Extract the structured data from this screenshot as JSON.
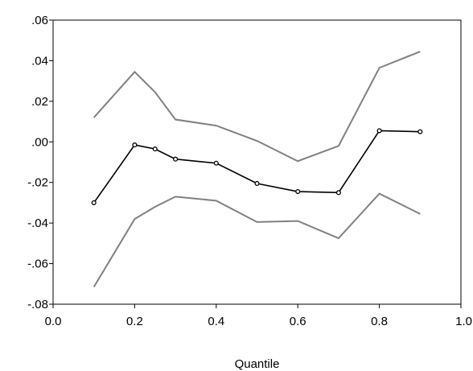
{
  "chart_data": {
    "type": "line",
    "title": "",
    "xlabel": "Quantile",
    "ylabel": "",
    "xlim": [
      0.0,
      1.0
    ],
    "ylim": [
      -0.08,
      0.06
    ],
    "grid": false,
    "x_ticks": [
      {
        "value": 0.0,
        "label": "0.0"
      },
      {
        "value": 0.2,
        "label": "0.2"
      },
      {
        "value": 0.4,
        "label": "0.4"
      },
      {
        "value": 0.6,
        "label": "0.6"
      },
      {
        "value": 0.8,
        "label": "0.8"
      },
      {
        "value": 1.0,
        "label": "1.0"
      }
    ],
    "y_ticks": [
      {
        "value": 0.06,
        "label": ".06"
      },
      {
        "value": 0.04,
        "label": ".04"
      },
      {
        "value": 0.02,
        "label": ".02"
      },
      {
        "value": 0.0,
        "label": ".00"
      },
      {
        "value": -0.02,
        "label": "-.02"
      },
      {
        "value": -0.04,
        "label": "-.04"
      },
      {
        "value": -0.06,
        "label": "-.06"
      },
      {
        "value": -0.08,
        "label": "-.08"
      }
    ],
    "x": [
      0.1,
      0.2,
      0.25,
      0.3,
      0.4,
      0.5,
      0.6,
      0.7,
      0.8,
      0.9
    ],
    "series": [
      {
        "role": "estimate",
        "color": "#000000",
        "markers": true,
        "values": [
          -0.03,
          -0.0015,
          -0.0035,
          -0.0085,
          -0.0105,
          -0.0205,
          -0.0245,
          -0.025,
          0.0055,
          0.005
        ]
      },
      {
        "role": "upper-bound",
        "color": "#808080",
        "markers": false,
        "values": [
          0.012,
          0.0345,
          0.0245,
          0.011,
          0.008,
          0.0005,
          -0.0095,
          -0.002,
          0.0365,
          0.0445
        ]
      },
      {
        "role": "lower-bound",
        "color": "#808080",
        "markers": false,
        "values": [
          -0.0715,
          -0.038,
          -0.032,
          -0.027,
          -0.029,
          -0.0395,
          -0.039,
          -0.0475,
          -0.0255,
          -0.0355
        ]
      }
    ]
  }
}
